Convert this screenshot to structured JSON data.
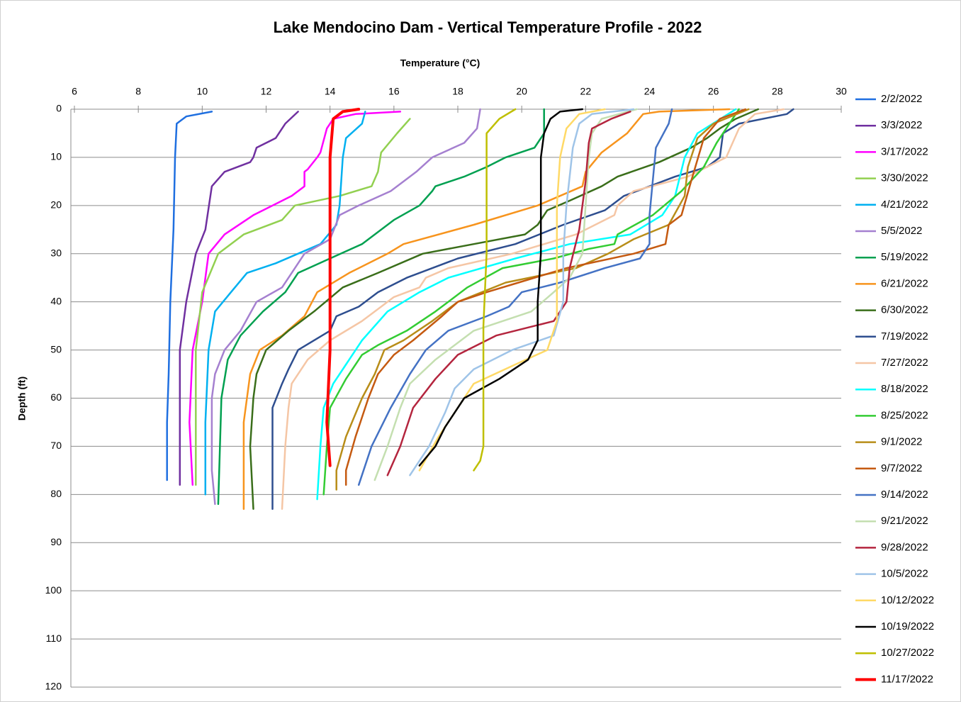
{
  "chart_data": {
    "type": "line",
    "title": "Lake Mendocino Dam - Vertical Temperature Profile - 2022",
    "x_label": "Temperature (°C)",
    "y_label": "Depth (ft)",
    "xlim": [
      6,
      30
    ],
    "xticks": [
      6,
      8,
      10,
      12,
      14,
      16,
      18,
      20,
      22,
      24,
      26,
      28,
      30
    ],
    "ylim": [
      0,
      120
    ],
    "yticks": [
      0,
      10,
      20,
      30,
      40,
      50,
      60,
      70,
      80,
      90,
      100,
      110,
      120
    ],
    "y_inverted": true,
    "x_axis_position": "top",
    "grid": true,
    "legend": "right",
    "series": [
      {
        "name": "2/2/2022",
        "color": "#1f6fe0",
        "temperature": [
          10.3,
          9.5,
          9.2,
          9.15,
          9.1,
          9.0,
          8.95,
          8.9,
          8.9
        ],
        "depth": [
          0.5,
          1.5,
          3,
          10,
          25,
          40,
          55,
          65,
          77
        ]
      },
      {
        "name": "3/3/2022",
        "color": "#7030a0",
        "temperature": [
          13,
          12.6,
          12.3,
          11.7,
          11.6,
          11.5,
          10.7,
          10.3,
          10.1,
          9.8,
          9.5,
          9.3,
          9.3,
          9.3
        ],
        "depth": [
          0.5,
          3,
          6,
          8,
          10,
          11,
          13,
          16,
          25,
          30,
          40,
          50,
          65,
          78
        ]
      },
      {
        "name": "3/17/2022",
        "color": "#ff00ff",
        "temperature": [
          16.2,
          14.8,
          14.1,
          13.9,
          13.7,
          13.6,
          13.3,
          13.2,
          13.2,
          12.8,
          11.6,
          10.7,
          10.2,
          10,
          9.7,
          9.6,
          9.7
        ],
        "depth": [
          0.5,
          1,
          2,
          4,
          9,
          10,
          12.5,
          13,
          16,
          18,
          22,
          26,
          30,
          40,
          50,
          65,
          78
        ]
      },
      {
        "name": "3/30/2022",
        "color": "#92d050",
        "temperature": [
          16.5,
          16.1,
          15.6,
          15.5,
          15.3,
          14.3,
          12.9,
          12.5,
          11.3,
          10.5,
          10,
          9.8,
          9.8,
          9.8
        ],
        "depth": [
          2,
          5,
          9,
          13,
          16,
          18,
          20,
          23,
          26,
          30,
          38,
          50,
          65,
          78
        ]
      },
      {
        "name": "4/21/2022",
        "color": "#00b0f0",
        "temperature": [
          15.1,
          15,
          14.5,
          14.4,
          14.3,
          14.2,
          13.7,
          12.3,
          11.4,
          10.9,
          10.4,
          10.2,
          10.1,
          10.1
        ],
        "depth": [
          0.5,
          3,
          6,
          10,
          20,
          24,
          28,
          32,
          34,
          38,
          42,
          50,
          65,
          80
        ]
      },
      {
        "name": "5/5/2022",
        "color": "#a580d0",
        "temperature": [
          18.7,
          18.6,
          18.2,
          17.2,
          16.7,
          15.9,
          14.9,
          14.3,
          14,
          13.2,
          12.8,
          12.5,
          11.7,
          11.2,
          10.7,
          10.4,
          10.3,
          10.3,
          10.4
        ],
        "depth": [
          0,
          4,
          7,
          10,
          13,
          17,
          20,
          22,
          27,
          30,
          34,
          37,
          40,
          46,
          50,
          55,
          60,
          75,
          82
        ]
      },
      {
        "name": "5/19/2022",
        "color": "#00a050",
        "temperature": [
          20.7,
          20.7,
          20.4,
          19.5,
          18.9,
          18.2,
          17.3,
          17.2,
          16.8,
          16,
          15,
          14,
          13,
          12.6,
          11.9,
          11.2,
          10.8,
          10.6,
          10.5
        ],
        "depth": [
          0,
          5,
          8,
          10,
          12,
          14,
          16,
          17,
          20,
          23,
          28,
          31,
          34,
          38,
          42,
          47,
          52,
          60,
          82
        ]
      },
      {
        "name": "6/21/2022",
        "color": "#f7941d",
        "temperature": [
          26.5,
          24.3,
          23.8,
          23.3,
          22.5,
          22,
          21.9,
          20.5,
          18.5,
          16.3,
          15.8,
          14.6,
          13.6,
          13.2,
          12.5,
          11.8,
          11.5,
          11.3,
          11.3
        ],
        "depth": [
          0,
          0.5,
          1,
          5,
          9,
          13,
          16,
          20,
          24,
          28,
          30,
          34,
          38,
          43,
          47,
          50,
          55,
          65,
          83
        ]
      },
      {
        "name": "6/30/2022",
        "color": "#3a6e1a",
        "temperature": [
          27.4,
          26.7,
          26.2,
          25.8,
          25.3,
          24.3,
          23,
          22.5,
          21.5,
          20.8,
          20.5,
          20.1,
          18.5,
          16.9,
          15.5,
          14.4,
          13.5,
          12.7,
          12,
          11.7,
          11.6,
          11.5,
          11.6
        ],
        "depth": [
          0,
          2,
          4,
          6,
          8,
          11,
          14,
          16,
          19,
          21,
          24,
          26,
          28,
          30,
          34,
          37,
          42,
          46,
          50,
          55,
          60,
          70,
          83
        ]
      },
      {
        "name": "7/19/2022",
        "color": "#2e4e8f",
        "temperature": [
          28.5,
          28.3,
          26.8,
          26.3,
          26.2,
          25.8,
          24.8,
          23.2,
          22.6,
          21.3,
          19.8,
          18,
          16.4,
          15.5,
          14.9,
          14.2,
          14,
          13,
          12.7,
          12.5,
          12.2,
          12.2
        ],
        "depth": [
          0,
          1,
          3,
          5,
          10,
          12,
          14,
          18,
          21,
          24,
          28,
          31,
          35,
          38,
          41,
          43,
          46,
          50,
          54,
          57,
          62,
          83
        ]
      },
      {
        "name": "7/27/2022",
        "color": "#f5c6a5",
        "temperature": [
          28.2,
          27.3,
          26.8,
          26.4,
          25.2,
          23.5,
          23,
          22.9,
          21.7,
          19.7,
          17.7,
          17,
          16.8,
          16,
          15.6,
          15,
          14,
          13.3,
          12.8,
          12.7,
          12.6,
          12.5
        ],
        "depth": [
          0,
          1,
          4,
          10,
          14,
          17,
          20,
          22,
          26,
          30,
          33,
          35,
          37,
          39,
          41,
          44,
          48,
          52,
          57,
          62,
          70,
          83
        ]
      },
      {
        "name": "8/18/2022",
        "color": "#00ffff",
        "temperature": [
          26.7,
          25.5,
          25.1,
          24.8,
          24.4,
          23.4,
          21.5,
          19.8,
          17.7,
          16.8,
          15.8,
          15,
          14.5,
          14.1,
          13.8,
          13.7,
          13.6
        ],
        "depth": [
          0,
          5,
          10,
          18,
          22,
          26,
          28,
          31,
          35,
          38,
          42,
          48,
          53,
          57,
          62,
          70,
          81
        ]
      },
      {
        "name": "8/25/2022",
        "color": "#33cc33",
        "temperature": [
          26.8,
          26.5,
          26.1,
          25.7,
          25,
          24.1,
          23,
          22.9,
          22.1,
          21,
          19.4,
          18.3,
          17.3,
          16.4,
          15.5,
          15,
          14.5,
          14,
          13.9,
          13.8
        ],
        "depth": [
          0,
          3,
          7,
          12,
          17,
          22,
          26,
          28,
          29,
          31,
          33,
          37,
          42,
          46,
          49,
          51,
          56,
          62,
          70,
          80
        ]
      },
      {
        "name": "9/1/2022",
        "color": "#b88d18",
        "temperature": [
          27.1,
          26,
          25.5,
          25.2,
          25.1,
          24.6,
          23.5,
          22.7,
          21.7,
          19.5,
          18,
          17.2,
          16.3,
          15.7,
          15.4,
          15,
          14.5,
          14.2,
          14.2
        ],
        "depth": [
          0,
          3,
          6,
          12,
          18,
          24,
          27,
          30,
          33,
          36,
          40,
          44,
          48,
          50,
          55,
          60,
          68,
          75,
          79
        ]
      },
      {
        "name": "9/7/2022",
        "color": "#c55a11",
        "temperature": [
          27,
          26.2,
          25.7,
          25.3,
          25,
          24.6,
          24.5,
          23.5,
          21.4,
          19.9,
          18.9,
          18,
          17.5,
          16.6,
          16,
          15.5,
          15.2,
          14.8,
          14.5,
          14.5
        ],
        "depth": [
          0,
          2,
          6,
          15,
          22,
          24,
          28,
          30,
          33,
          36,
          38,
          40,
          43,
          48,
          51,
          55,
          60,
          68,
          75,
          78
        ]
      },
      {
        "name": "9/14/2022",
        "color": "#4472c4",
        "temperature": [
          24.7,
          24.6,
          24.2,
          24.1,
          24,
          24,
          23.7,
          22.6,
          21.2,
          20,
          19.6,
          18.9,
          17.7,
          17,
          16.5,
          15.9,
          15.3,
          14.9
        ],
        "depth": [
          0,
          3,
          8,
          15,
          22,
          28,
          31,
          33,
          36,
          38,
          41,
          43,
          46,
          50,
          55,
          62,
          70,
          78
        ]
      },
      {
        "name": "9/21/2022",
        "color": "#c4dfb0",
        "temperature": [
          23.6,
          22.5,
          22.2,
          22.1,
          22,
          21.9,
          21.5,
          21,
          20.3,
          18.5,
          17.3,
          16.5,
          16.2,
          15.8,
          15.4
        ],
        "depth": [
          0,
          2,
          5,
          10,
          20,
          30,
          35,
          38,
          42,
          46,
          52,
          57,
          62,
          70,
          77
        ]
      },
      {
        "name": "9/28/2022",
        "color": "#b4253e",
        "temperature": [
          23.4,
          22.8,
          22.2,
          22.1,
          22,
          21.8,
          21.5,
          21.4,
          21,
          19.2,
          18,
          17.3,
          16.6,
          16.2,
          15.8
        ],
        "depth": [
          0.5,
          2,
          4,
          7,
          15,
          25,
          33,
          40,
          44,
          47,
          51,
          56,
          62,
          70,
          76
        ]
      },
      {
        "name": "10/5/2022",
        "color": "#9fc4e8",
        "temperature": [
          23.5,
          22.2,
          21.8,
          21.6,
          21.4,
          21.3,
          21.3,
          21,
          19.7,
          18.5,
          17.9,
          17.6,
          17.1,
          16.5
        ],
        "depth": [
          0,
          1,
          3,
          8,
          20,
          30,
          40,
          47,
          50,
          54,
          58,
          63,
          70,
          76
        ]
      },
      {
        "name": "10/12/2022",
        "color": "#ffd966",
        "temperature": [
          22.6,
          21.8,
          21.4,
          21.2,
          21.1,
          21.1,
          21.1,
          20.8,
          19.8,
          18.5,
          18,
          17.4,
          16.8
        ],
        "depth": [
          0,
          1,
          4,
          10,
          20,
          35,
          44,
          50,
          53,
          57,
          62,
          68,
          75
        ]
      },
      {
        "name": "10/19/2022",
        "color": "#000000",
        "temperature": [
          21.9,
          21.2,
          20.9,
          20.7,
          20.6,
          20.6,
          20.5,
          20.5,
          20.2,
          19.3,
          18.2,
          17.6,
          17.3,
          16.8
        ],
        "depth": [
          0,
          0.5,
          2,
          5,
          10,
          30,
          40,
          48,
          52,
          56,
          60,
          66,
          70,
          74
        ]
      },
      {
        "name": "10/27/2022",
        "color": "#bfbf00",
        "temperature": [
          19.8,
          19.3,
          18.9,
          18.9,
          18.9,
          18.8,
          18.8,
          18.8,
          18.7,
          18.5
        ],
        "depth": [
          0,
          2,
          5,
          15,
          30,
          45,
          60,
          70,
          73,
          75
        ]
      },
      {
        "name": "11/17/2022",
        "color": "#ff0000",
        "width": 4,
        "temperature": [
          14.9,
          14.4,
          14.1,
          14.0,
          14,
          14,
          13.9,
          14
        ],
        "depth": [
          0,
          0.5,
          2,
          10,
          30,
          50,
          65,
          74
        ]
      }
    ]
  }
}
